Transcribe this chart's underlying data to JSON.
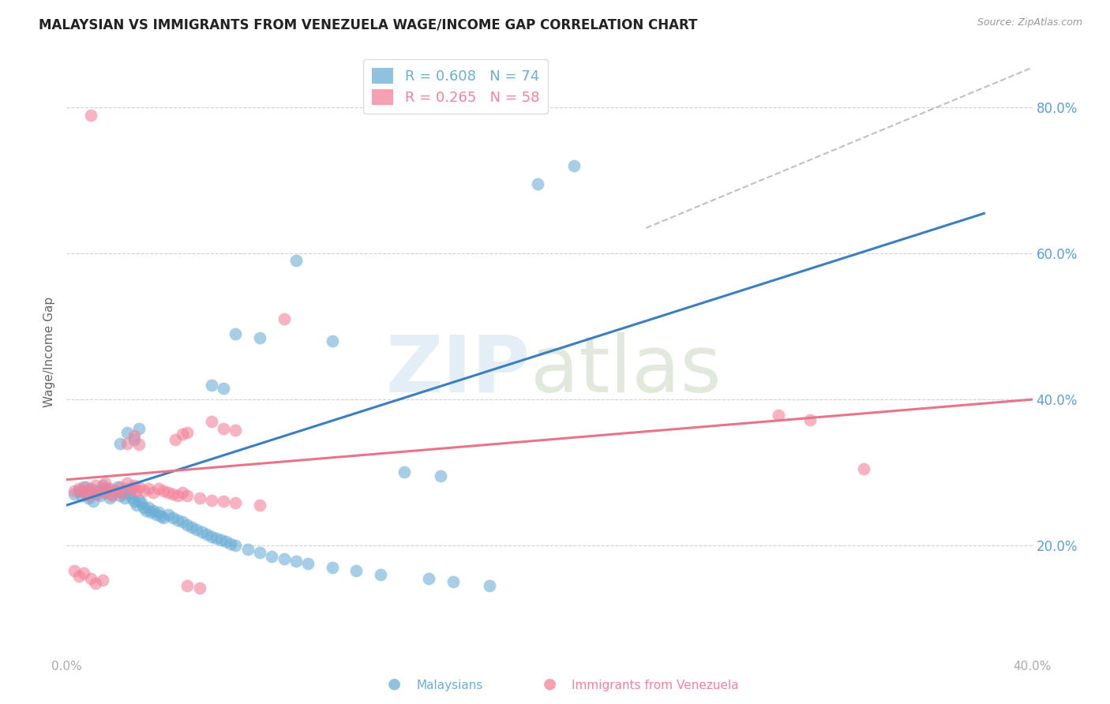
{
  "title": "MALAYSIAN VS IMMIGRANTS FROM VENEZUELA WAGE/INCOME GAP CORRELATION CHART",
  "source": "Source: ZipAtlas.com",
  "ylabel": "Wage/Income Gap",
  "right_ytick_values": [
    0.2,
    0.4,
    0.6,
    0.8
  ],
  "right_ytick_labels": [
    "20.0%",
    "40.0%",
    "60.0%",
    "80.0%"
  ],
  "xlim": [
    0.0,
    0.4
  ],
  "ylim": [
    0.05,
    0.88
  ],
  "legend_entries": [
    {
      "label": "R = 0.608   N = 74",
      "color": "#6baed6"
    },
    {
      "label": "R = 0.265   N = 58",
      "color": "#f4819a"
    }
  ],
  "legend_sublabels": [
    "Malaysians",
    "Immigrants from Venezuela"
  ],
  "blue_color": "#6baed6",
  "pink_color": "#f4819a",
  "blue_line_color": "#3a7fc1",
  "pink_line_color": "#e8748a",
  "dashed_line_color": "#c0c0c0",
  "right_axis_color": "#5a9fd4",
  "grid_color": "#d0d0e0",
  "blue_line": {
    "x0": 0.0,
    "y0": 0.255,
    "x1": 0.38,
    "y1": 0.655
  },
  "pink_line": {
    "x0": 0.0,
    "y0": 0.29,
    "x1": 0.4,
    "y1": 0.4
  },
  "dashed_line": {
    "x0": 0.24,
    "y0": 0.635,
    "x1": 0.4,
    "y1": 0.855
  },
  "blue_points": [
    [
      0.003,
      0.27
    ],
    [
      0.005,
      0.275
    ],
    [
      0.006,
      0.268
    ],
    [
      0.007,
      0.28
    ],
    [
      0.008,
      0.272
    ],
    [
      0.009,
      0.265
    ],
    [
      0.01,
      0.278
    ],
    [
      0.011,
      0.26
    ],
    [
      0.012,
      0.27
    ],
    [
      0.013,
      0.275
    ],
    [
      0.014,
      0.268
    ],
    [
      0.015,
      0.282
    ],
    [
      0.016,
      0.272
    ],
    [
      0.017,
      0.278
    ],
    [
      0.018,
      0.265
    ],
    [
      0.019,
      0.27
    ],
    [
      0.02,
      0.275
    ],
    [
      0.021,
      0.28
    ],
    [
      0.022,
      0.268
    ],
    [
      0.023,
      0.272
    ],
    [
      0.024,
      0.265
    ],
    [
      0.025,
      0.278
    ],
    [
      0.026,
      0.27
    ],
    [
      0.027,
      0.265
    ],
    [
      0.028,
      0.26
    ],
    [
      0.029,
      0.255
    ],
    [
      0.03,
      0.262
    ],
    [
      0.031,
      0.258
    ],
    [
      0.032,
      0.252
    ],
    [
      0.033,
      0.248
    ],
    [
      0.034,
      0.252
    ],
    [
      0.035,
      0.245
    ],
    [
      0.036,
      0.248
    ],
    [
      0.037,
      0.242
    ],
    [
      0.038,
      0.245
    ],
    [
      0.039,
      0.24
    ],
    [
      0.04,
      0.238
    ],
    [
      0.042,
      0.242
    ],
    [
      0.044,
      0.238
    ],
    [
      0.046,
      0.235
    ],
    [
      0.048,
      0.232
    ],
    [
      0.05,
      0.228
    ],
    [
      0.052,
      0.225
    ],
    [
      0.054,
      0.222
    ],
    [
      0.056,
      0.218
    ],
    [
      0.058,
      0.215
    ],
    [
      0.06,
      0.212
    ],
    [
      0.062,
      0.21
    ],
    [
      0.064,
      0.208
    ],
    [
      0.066,
      0.205
    ],
    [
      0.068,
      0.202
    ],
    [
      0.07,
      0.2
    ],
    [
      0.075,
      0.195
    ],
    [
      0.08,
      0.19
    ],
    [
      0.085,
      0.185
    ],
    [
      0.09,
      0.182
    ],
    [
      0.095,
      0.178
    ],
    [
      0.1,
      0.175
    ],
    [
      0.11,
      0.17
    ],
    [
      0.12,
      0.165
    ],
    [
      0.13,
      0.16
    ],
    [
      0.15,
      0.155
    ],
    [
      0.16,
      0.15
    ],
    [
      0.175,
      0.145
    ],
    [
      0.022,
      0.34
    ],
    [
      0.025,
      0.355
    ],
    [
      0.028,
      0.345
    ],
    [
      0.03,
      0.36
    ],
    [
      0.06,
      0.42
    ],
    [
      0.065,
      0.415
    ],
    [
      0.07,
      0.49
    ],
    [
      0.08,
      0.485
    ],
    [
      0.095,
      0.59
    ],
    [
      0.11,
      0.48
    ],
    [
      0.14,
      0.3
    ],
    [
      0.155,
      0.295
    ],
    [
      0.195,
      0.695
    ],
    [
      0.21,
      0.72
    ]
  ],
  "pink_points": [
    [
      0.003,
      0.275
    ],
    [
      0.005,
      0.278
    ],
    [
      0.007,
      0.272
    ],
    [
      0.008,
      0.28
    ],
    [
      0.009,
      0.268
    ],
    [
      0.01,
      0.275
    ],
    [
      0.012,
      0.282
    ],
    [
      0.013,
      0.27
    ],
    [
      0.015,
      0.278
    ],
    [
      0.016,
      0.285
    ],
    [
      0.017,
      0.272
    ],
    [
      0.018,
      0.278
    ],
    [
      0.019,
      0.268
    ],
    [
      0.02,
      0.275
    ],
    [
      0.022,
      0.28
    ],
    [
      0.023,
      0.272
    ],
    [
      0.025,
      0.285
    ],
    [
      0.027,
      0.278
    ],
    [
      0.028,
      0.282
    ],
    [
      0.029,
      0.275
    ],
    [
      0.03,
      0.28
    ],
    [
      0.032,
      0.275
    ],
    [
      0.034,
      0.278
    ],
    [
      0.036,
      0.272
    ],
    [
      0.038,
      0.278
    ],
    [
      0.04,
      0.275
    ],
    [
      0.042,
      0.272
    ],
    [
      0.044,
      0.27
    ],
    [
      0.046,
      0.268
    ],
    [
      0.048,
      0.272
    ],
    [
      0.05,
      0.268
    ],
    [
      0.055,
      0.265
    ],
    [
      0.06,
      0.262
    ],
    [
      0.065,
      0.26
    ],
    [
      0.07,
      0.258
    ],
    [
      0.08,
      0.255
    ],
    [
      0.003,
      0.165
    ],
    [
      0.005,
      0.158
    ],
    [
      0.007,
      0.162
    ],
    [
      0.01,
      0.155
    ],
    [
      0.012,
      0.148
    ],
    [
      0.015,
      0.152
    ],
    [
      0.05,
      0.145
    ],
    [
      0.055,
      0.142
    ],
    [
      0.025,
      0.34
    ],
    [
      0.028,
      0.35
    ],
    [
      0.03,
      0.338
    ],
    [
      0.045,
      0.345
    ],
    [
      0.048,
      0.352
    ],
    [
      0.05,
      0.355
    ],
    [
      0.06,
      0.37
    ],
    [
      0.065,
      0.36
    ],
    [
      0.07,
      0.358
    ],
    [
      0.09,
      0.51
    ],
    [
      0.01,
      0.79
    ],
    [
      0.295,
      0.378
    ],
    [
      0.308,
      0.372
    ],
    [
      0.33,
      0.305
    ]
  ]
}
